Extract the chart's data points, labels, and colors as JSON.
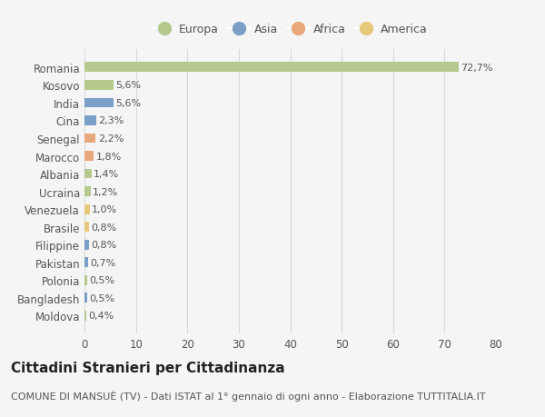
{
  "countries": [
    "Romania",
    "Kosovo",
    "India",
    "Cina",
    "Senegal",
    "Marocco",
    "Albania",
    "Ucraina",
    "Venezuela",
    "Brasile",
    "Filippine",
    "Pakistan",
    "Polonia",
    "Bangladesh",
    "Moldova"
  ],
  "values": [
    72.7,
    5.6,
    5.6,
    2.3,
    2.2,
    1.8,
    1.4,
    1.2,
    1.0,
    0.8,
    0.8,
    0.7,
    0.5,
    0.5,
    0.4
  ],
  "labels": [
    "72,7%",
    "5,6%",
    "5,6%",
    "2,3%",
    "2,2%",
    "1,8%",
    "1,4%",
    "1,2%",
    "1,0%",
    "0,8%",
    "0,8%",
    "0,7%",
    "0,5%",
    "0,5%",
    "0,4%"
  ],
  "continents": [
    "Europa",
    "Europa",
    "Asia",
    "Asia",
    "Africa",
    "Africa",
    "Europa",
    "Europa",
    "America",
    "America",
    "Asia",
    "Asia",
    "Europa",
    "Asia",
    "Europa"
  ],
  "continent_colors": {
    "Europa": "#b5c98e",
    "Asia": "#7b9fc7",
    "Africa": "#e8a87c",
    "America": "#e8c87a"
  },
  "legend_order": [
    "Europa",
    "Asia",
    "Africa",
    "America"
  ],
  "xlim": [
    0,
    80
  ],
  "xticks": [
    0,
    10,
    20,
    30,
    40,
    50,
    60,
    70,
    80
  ],
  "title": "Cittadini Stranieri per Cittadinanza",
  "subtitle": "COMUNE DI MANSUÈ (TV) - Dati ISTAT al 1° gennaio di ogni anno - Elaborazione TUTTITALIA.IT",
  "background_color": "#f5f5f5",
  "bar_height": 0.55,
  "title_fontsize": 11,
  "subtitle_fontsize": 8,
  "label_fontsize": 8,
  "ytick_fontsize": 8.5,
  "xtick_fontsize": 8.5,
  "legend_fontsize": 9
}
